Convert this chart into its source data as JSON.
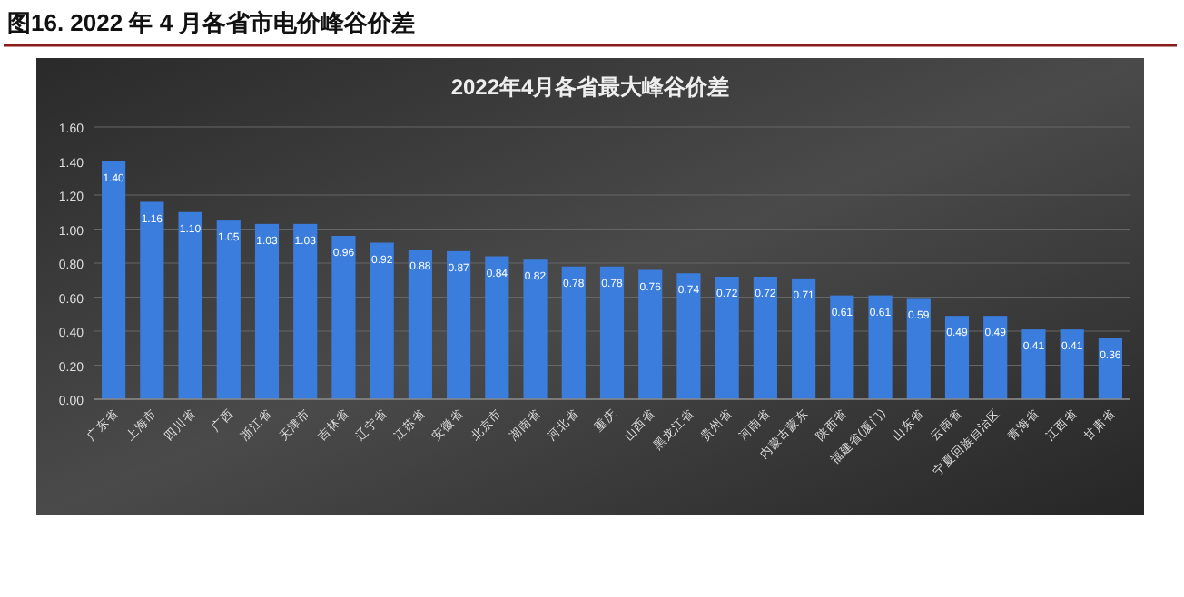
{
  "chart_data": {
    "type": "bar",
    "title": "图16. 2022 年 4 月各省市电价峰谷价差",
    "subtitle": "2022年4月各省最大峰谷价差",
    "categories": [
      "广东省",
      "上海市",
      "四川省",
      "广西",
      "浙江省",
      "天津市",
      "吉林省",
      "辽宁省",
      "江苏省",
      "安徽省",
      "北京市",
      "湖南省",
      "河北省",
      "重庆",
      "山西省",
      "黑龙江省",
      "贵州省",
      "河南省",
      "内蒙古蒙东",
      "陕西省",
      "福建省(厦门)",
      "山东省",
      "云南省",
      "宁夏回族自治区",
      "青海省",
      "江西省",
      "甘肃省"
    ],
    "values": [
      1.4,
      1.16,
      1.1,
      1.05,
      1.03,
      1.03,
      0.96,
      0.92,
      0.88,
      0.87,
      0.84,
      0.82,
      0.78,
      0.78,
      0.76,
      0.74,
      0.72,
      0.72,
      0.71,
      0.61,
      0.61,
      0.59,
      0.49,
      0.49,
      0.41,
      0.41,
      0.36
    ],
    "color": "#3b7ddd",
    "value_labels": [
      "1.40",
      "1.16",
      "1.10",
      "1.05",
      "1.03",
      "1.03",
      "0.96",
      "0.92",
      "0.88",
      "0.87",
      "0.84",
      "0.82",
      "0.78",
      "0.78",
      "0.76",
      "0.74",
      "0.72",
      "0.72",
      "0.71",
      "0.61",
      "0.61",
      "0.59",
      "0.49",
      "0.49",
      "0.41",
      "0.41",
      "0.36"
    ],
    "grid": "y",
    "ylim": [
      0,
      1.6
    ],
    "yticks": [
      {
        "value": 0,
        "label": "0.00"
      },
      {
        "value": 0.2,
        "label": "0.20"
      },
      {
        "value": 0.4,
        "label": "0.40"
      },
      {
        "value": 0.6,
        "label": "0.60"
      },
      {
        "value": 0.8,
        "label": "0.80"
      },
      {
        "value": 1.0,
        "label": "1.00"
      },
      {
        "value": 1.2,
        "label": "1.20"
      },
      {
        "value": 1.4,
        "label": "1.40"
      },
      {
        "value": 1.6,
        "label": "1.60"
      }
    ]
  }
}
